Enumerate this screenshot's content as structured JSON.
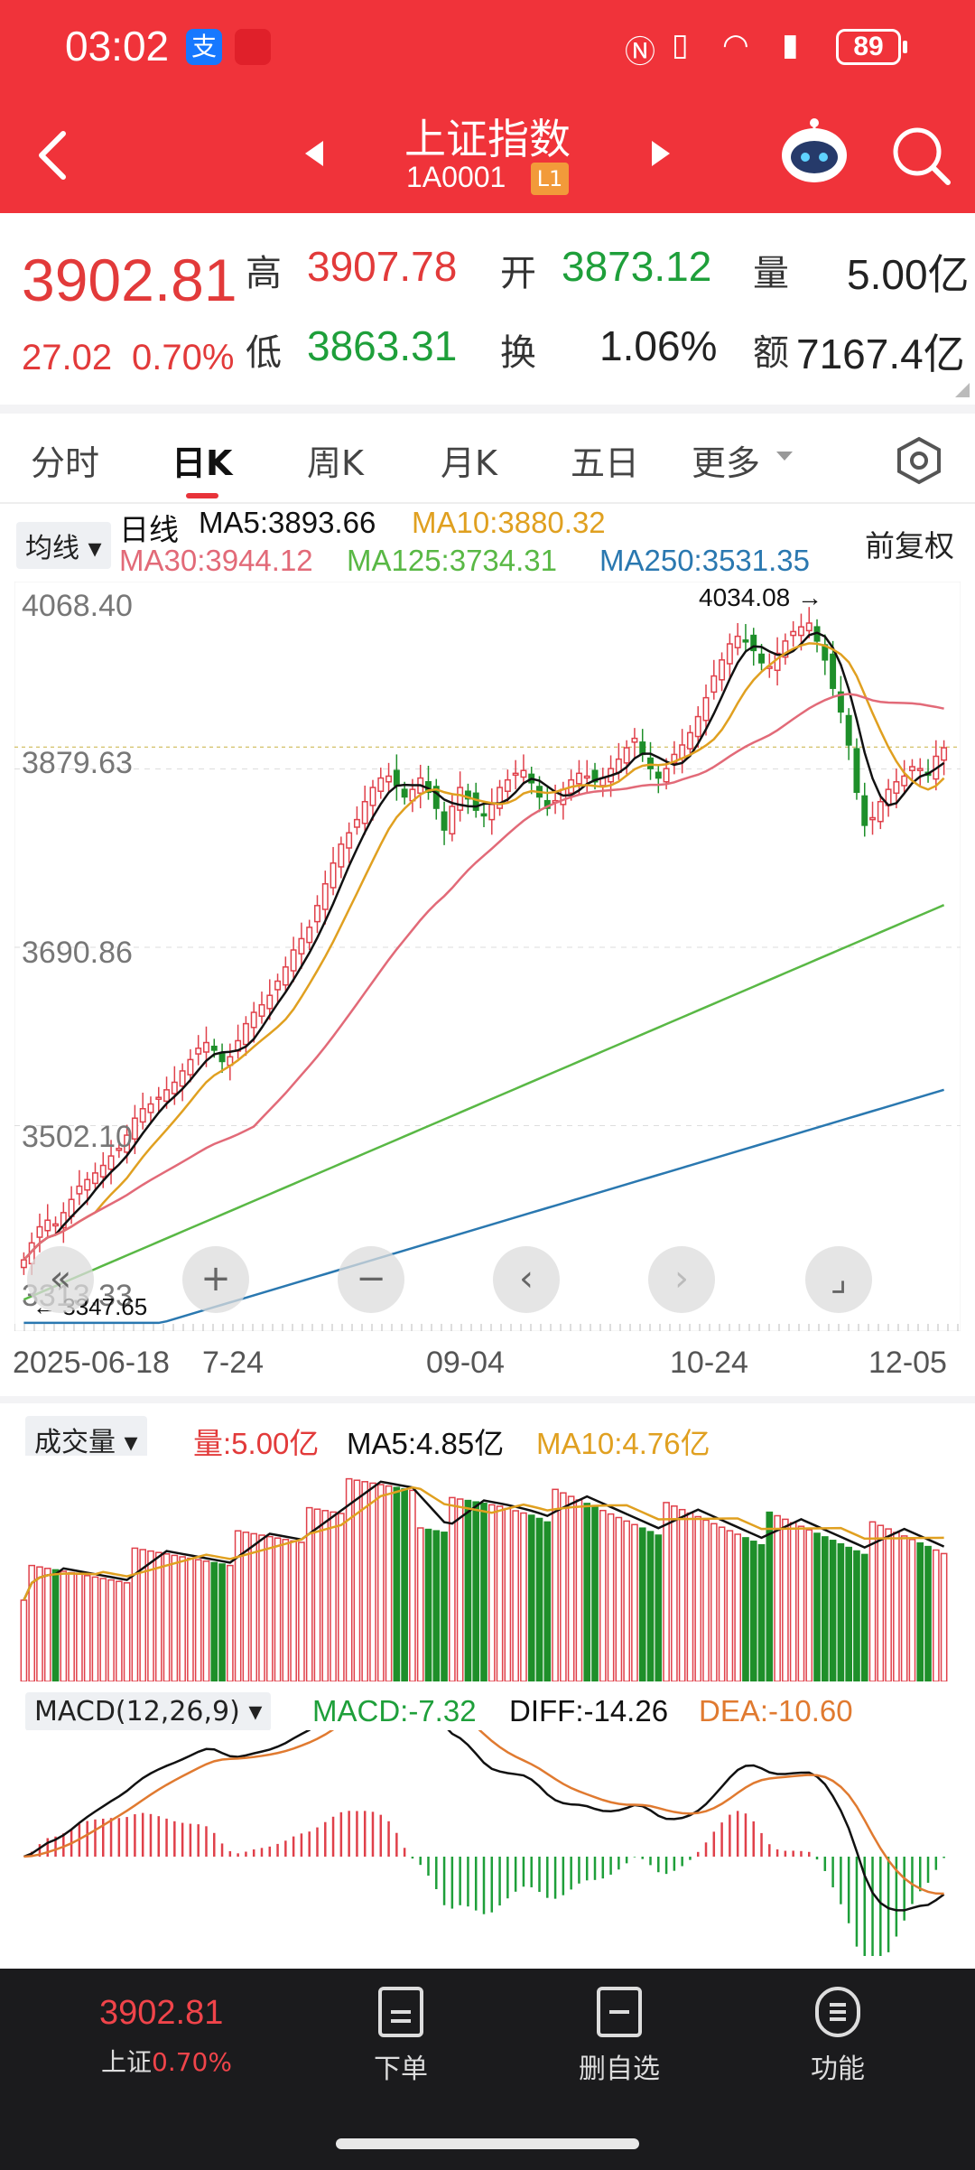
{
  "status_bar": {
    "time": "03:02",
    "battery": "89"
  },
  "header": {
    "title": "上证指数",
    "code": "1A0001",
    "level": "L1"
  },
  "quote": {
    "price": "3902.81",
    "change": "27.02",
    "change_pct": "0.70%",
    "high_label": "高",
    "high": "3907.78",
    "open_label": "开",
    "open": "3873.12",
    "volume_label": "量",
    "volume": "5.00亿",
    "low_label": "低",
    "low": "3863.31",
    "turnover_label": "换",
    "turnover": "1.06%",
    "amount_label": "额",
    "amount": "7167.4亿"
  },
  "tabs": [
    {
      "label": "分时"
    },
    {
      "label": "日K"
    },
    {
      "label": "周K"
    },
    {
      "label": "月K"
    },
    {
      "label": "五日"
    },
    {
      "label": "更多"
    }
  ],
  "ma": {
    "selector": "均线",
    "period": "日线",
    "ma5": "MA5:3893.66",
    "ma10": "MA10:3880.32",
    "ma30": "MA30:3944.12",
    "ma125": "MA125:3734.31",
    "ma250": "MA250:3531.35",
    "adjust": "前复权"
  },
  "chart_data": [
    {
      "type": "candlestick",
      "y_ticks": [
        "4068.40",
        "3879.63",
        "3690.86",
        "3502.10",
        "3313.33"
      ],
      "ylim": [
        3313.33,
        4068.4
      ],
      "high_marker": "4034.08",
      "low_marker": "3347.65",
      "x_ticks": [
        "2025-06-18",
        "7-24",
        "09-04",
        "10-24",
        "12-05"
      ],
      "close_series": [
        3360,
        3378,
        3395,
        3402,
        3398,
        3410,
        3424,
        3438,
        3445,
        3452,
        3460,
        3470,
        3478,
        3492,
        3510,
        3520,
        3525,
        3532,
        3540,
        3548,
        3560,
        3572,
        3584,
        3590,
        3582,
        3570,
        3575,
        3592,
        3610,
        3622,
        3630,
        3640,
        3655,
        3670,
        3688,
        3700,
        3712,
        3735,
        3758,
        3780,
        3800,
        3812,
        3826,
        3845,
        3860,
        3870,
        3872,
        3862,
        3850,
        3858,
        3870,
        3855,
        3838,
        3815,
        3840,
        3860,
        3848,
        3836,
        3830,
        3842,
        3860,
        3868,
        3875,
        3878,
        3865,
        3850,
        3838,
        3846,
        3858,
        3868,
        3875,
        3872,
        3866,
        3870,
        3880,
        3890,
        3902,
        3912,
        3895,
        3880,
        3870,
        3880,
        3895,
        3905,
        3918,
        3935,
        3955,
        3978,
        3995,
        4012,
        4020,
        4015,
        4005,
        3992,
        3988,
        4002,
        4015,
        4025,
        4030,
        4034,
        4015,
        3995,
        3965,
        3940,
        3905,
        3855,
        3820,
        3828,
        3845,
        3858,
        3866,
        3872,
        3882,
        3880,
        3873,
        3893,
        3902
      ],
      "ma_colors": {
        "ma5": "#111111",
        "ma10": "#e0a020",
        "ma30": "#e26a78",
        "ma125": "#59b845",
        "ma250": "#2a78b0"
      }
    },
    {
      "type": "bar",
      "title": "成交量",
      "vol": "量:5.00亿",
      "ma5": "MA5:4.85亿",
      "ma10": "MA10:4.76亿"
    },
    {
      "type": "macd",
      "title": "MACD(12,26,9)",
      "macd": "MACD:-7.32",
      "diff": "DIFF:-14.26",
      "dea": "DEA:-10.60"
    }
  ],
  "controls": [
    "«",
    "+",
    "−",
    "‹",
    "›",
    "⌟"
  ],
  "bottom_bar": {
    "price": "3902.81",
    "index_name": "上证",
    "pct": "0.70%",
    "order": "下单",
    "remove": "删自选",
    "functions": "功能"
  }
}
